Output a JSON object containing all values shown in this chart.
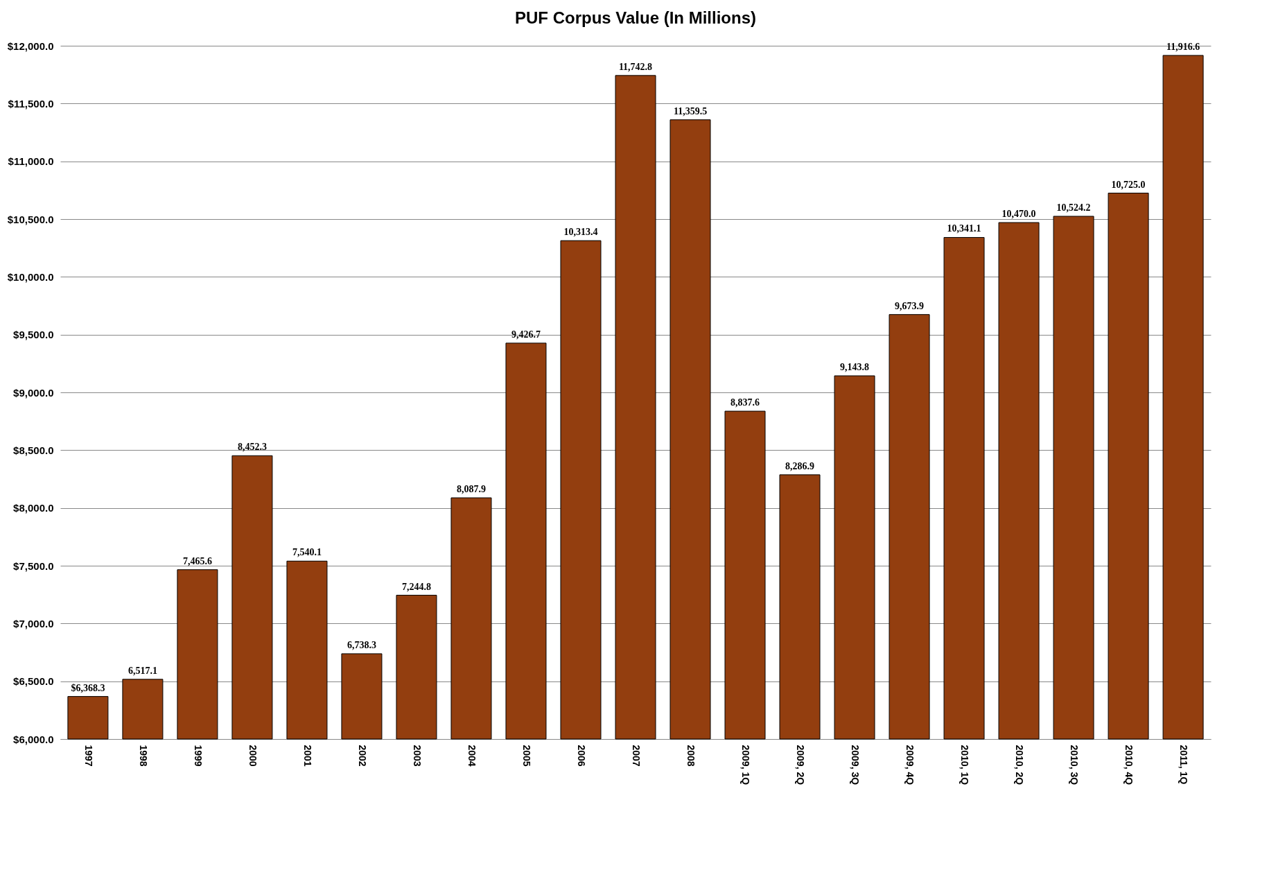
{
  "chart_data": {
    "type": "bar",
    "title": "PUF Corpus Value (In Millions)",
    "categories": [
      "1997",
      "1998",
      "1999",
      "2000",
      "2001",
      "2002",
      "2003",
      "2004",
      "2005",
      "2006",
      "2007",
      "2008",
      "2009, 1Q",
      "2009, 2Q",
      "2009, 3Q",
      "2009, 4Q",
      "2010, 1Q",
      "2010, 2Q",
      "2010, 3Q",
      "2010, 4Q",
      "2011, 1Q"
    ],
    "values": [
      6368.3,
      6517.1,
      7465.6,
      8452.3,
      7540.1,
      6738.3,
      7244.8,
      8087.9,
      9426.7,
      10313.4,
      11742.8,
      11359.5,
      8837.6,
      8286.9,
      9143.8,
      9673.9,
      10341.1,
      10470.0,
      10524.2,
      10725.0,
      11916.6
    ],
    "value_labels": [
      "$6,368.3",
      "6,517.1",
      "7,465.6",
      "8,452.3",
      "7,540.1",
      "6,738.3",
      "7,244.8",
      "8,087.9",
      "9,426.7",
      "10,313.4",
      "11,742.8",
      "11,359.5",
      "8,837.6",
      "8,286.9",
      "9,143.8",
      "9,673.9",
      "10,341.1",
      "10,470.0",
      "10,524.2",
      "10,725.0",
      "11,916.6"
    ],
    "color": "#933e0f",
    "ylim": [
      6000,
      12000
    ],
    "yticks": [
      {
        "value": 6000,
        "label": "$6,000.0"
      },
      {
        "value": 6500,
        "label": "$6,500.0"
      },
      {
        "value": 7000,
        "label": "$7,000.0"
      },
      {
        "value": 7500,
        "label": "$7,500.0"
      },
      {
        "value": 8000,
        "label": "$8,000.0"
      },
      {
        "value": 8500,
        "label": "$8,500.0"
      },
      {
        "value": 9000,
        "label": "$9,000.0"
      },
      {
        "value": 9500,
        "label": "$9,500.0"
      },
      {
        "value": 10000,
        "label": "$10,000.0"
      },
      {
        "value": 10500,
        "label": "$10,500.0"
      },
      {
        "value": 11000,
        "label": "$11,000.0"
      },
      {
        "value": 11500,
        "label": "$11,500.0"
      },
      {
        "value": 12000,
        "label": "$12,000.0"
      }
    ],
    "grid": "y"
  }
}
